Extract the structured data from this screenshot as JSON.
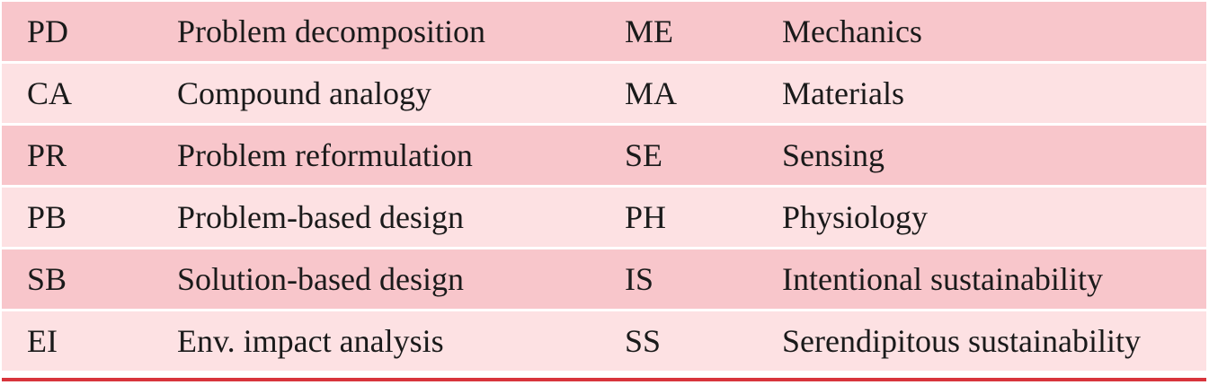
{
  "table": {
    "rows": [
      [
        "PD",
        "Problem decomposition",
        "ME",
        "Mechanics"
      ],
      [
        "CA",
        "Compound analogy",
        "MA",
        "Materials"
      ],
      [
        "PR",
        "Problem reformulation",
        "SE",
        "Sensing"
      ],
      [
        "PB",
        "Problem-based design",
        "PH",
        "Physiology"
      ],
      [
        "SB",
        "Solution-based design",
        "IS",
        "Intentional sustainability"
      ],
      [
        "EI",
        "Env. impact analysis",
        "SS",
        "Serendipitous sustainability"
      ]
    ]
  }
}
